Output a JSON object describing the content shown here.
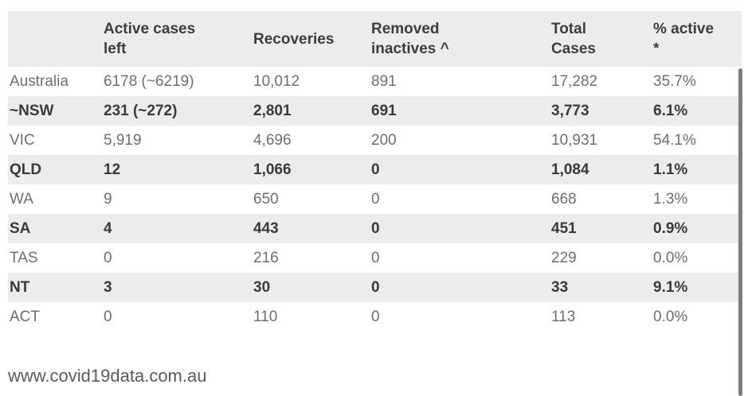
{
  "chart_data": {
    "type": "table",
    "columns": [
      "",
      "Active cases\nleft",
      "Recoveries",
      "Removed\ninactives ^",
      "Total\nCases",
      "% active\n*"
    ],
    "rows": [
      [
        "Australia",
        "6178 (~6219)",
        "10,012",
        "891",
        "17,282",
        "35.7%"
      ],
      [
        "~NSW",
        "231 (~272)",
        "2,801",
        "691",
        "3,773",
        "6.1%"
      ],
      [
        "VIC",
        "5,919",
        "4,696",
        "200",
        "10,931",
        "54.1%"
      ],
      [
        "QLD",
        "12",
        "1,066",
        "0",
        "1,084",
        "1.1%"
      ],
      [
        "WA",
        "9",
        "650",
        "0",
        "668",
        "1.3%"
      ],
      [
        "SA",
        "4",
        "443",
        "0",
        "451",
        "0.9%"
      ],
      [
        "TAS",
        "0",
        "216",
        "0",
        "229",
        "0.0%"
      ],
      [
        "NT",
        "3",
        "30",
        "0",
        "33",
        "9.1%"
      ],
      [
        "ACT",
        "0",
        "110",
        "0",
        "113",
        "0.0%"
      ]
    ],
    "highlighted_rows": [
      1,
      3,
      5,
      7
    ],
    "layout": {
      "striped": true,
      "header_two_line_wrap": true,
      "scrollbar_visible": true
    }
  },
  "footer": {
    "url": "www.covid19data.com.au"
  },
  "colors": {
    "stripe_bg": "#ececec",
    "header_bg": "#ececec",
    "header_text": "#3d3d3d",
    "highlight_text": "#3a3a3a",
    "regular_text": "#6e6e6e",
    "scrollbar_thumb": "#7c7c7c",
    "footer_text": "#5a5a5a"
  }
}
